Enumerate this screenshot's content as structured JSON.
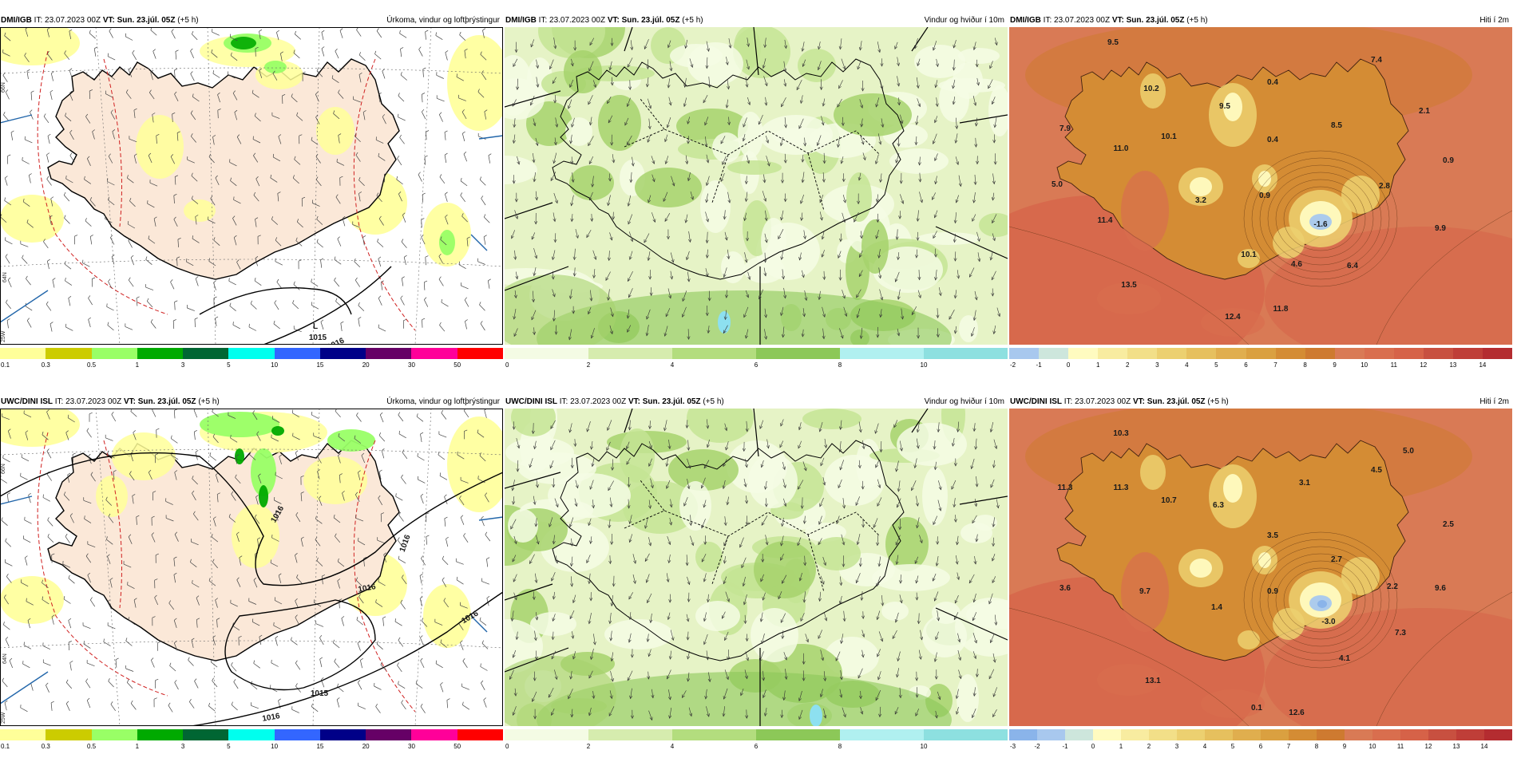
{
  "panels": [
    {
      "id": "p1",
      "model": "DMI/IGB",
      "init": "IT: 23.07.2023 00Z",
      "valid": "VT: Sun. 23.júl. 05Z",
      "lead": "(+5 h)",
      "field": "Úrkoma, vindur og loftþrýstingur",
      "type": "precip",
      "pressure_labels": [
        "L",
        "1015",
        "1016"
      ]
    },
    {
      "id": "p2",
      "model": "DMI/IGB",
      "init": "IT: 23.07.2023 00Z",
      "valid": "VT: Sun. 23.júl. 05Z",
      "lead": "(+5 h)",
      "field": "Vindur og hviður í 10m",
      "type": "wind"
    },
    {
      "id": "p3",
      "model": "DMI/IGB",
      "init": "IT: 23.07.2023 00Z",
      "valid": "VT: Sun. 23.júl. 05Z",
      "lead": "(+5 h)",
      "field": "Hiti í 2m",
      "type": "temp",
      "temp_labels": [
        "9.5",
        "7.4",
        "10.2",
        "0.4",
        "9.5",
        "2.1",
        "7.9",
        "10.1",
        "8.5",
        "0.4",
        "11.0",
        "0.9",
        "5.0",
        "2.8",
        "3.2",
        "0.9",
        "11.4",
        "-1.6",
        "9.9",
        "10.1",
        "4.6",
        "6.4",
        "13.5",
        "11.8",
        "12.4"
      ]
    },
    {
      "id": "p4",
      "model": "UWC/DINI ISL",
      "init": "IT: 23.07.2023 00Z",
      "valid": "VT: Sun. 23.júl. 05Z",
      "lead": "(+5 h)",
      "field": "Úrkoma, vindur og loftþrýstingur",
      "type": "precip",
      "pressure_labels": [
        "1016",
        "1016",
        "1016",
        "1015",
        "1016",
        "1016"
      ]
    },
    {
      "id": "p5",
      "model": "UWC/DINI ISL",
      "init": "IT: 23.07.2023 00Z",
      "valid": "VT: Sun. 23.júl. 05Z",
      "lead": "(+5 h)",
      "field": "Vindur og hviður í 10m",
      "type": "wind"
    },
    {
      "id": "p6",
      "model": "UWC/DINI ISL",
      "init": "IT: 23.07.2023 00Z",
      "valid": "VT: Sun. 23.júl. 05Z",
      "lead": "(+5 h)",
      "field": "Hiti í 2m",
      "type": "temp",
      "temp_labels": [
        "10.3",
        "5.0",
        "4.5",
        "3.1",
        "11.3",
        "11.3",
        "10.7",
        "6.3",
        "2.5",
        "3.5",
        "2.7",
        "3.6",
        "9.7",
        "1.4",
        "0.9",
        "2.2",
        "9.6",
        "-3.0",
        "7.3",
        "4.1",
        "13.1",
        "0.1",
        "12.6"
      ]
    }
  ],
  "scales": {
    "precip": {
      "ticks": [
        "0.1",
        "0.3",
        "0.5",
        "1",
        "3",
        "5",
        "10",
        "15",
        "20",
        "30",
        "50"
      ],
      "colors": [
        "#ffff99",
        "#cccc00",
        "#99ff66",
        "#00aa00",
        "#006633",
        "#00ffee",
        "#3366ff",
        "#000088",
        "#660066",
        "#ff0099",
        "#ff0000"
      ]
    },
    "wind": {
      "ticks": [
        "0",
        "2",
        "4",
        "6",
        "8",
        "10"
      ],
      "colors": [
        "#f4fbe4",
        "#d6ecae",
        "#b3dd7e",
        "#8cc858",
        "#b0f0f0",
        "#8de0e0"
      ]
    },
    "temp_top": {
      "ticks": [
        "-2",
        "-1",
        "0",
        "1",
        "2",
        "3",
        "4",
        "5",
        "6",
        "7",
        "8",
        "9",
        "10",
        "11",
        "12",
        "13",
        "14"
      ],
      "colors": [
        "#a8c8ee",
        "#cde6dc",
        "#fffbc0",
        "#f8eca0",
        "#f2df88",
        "#ecd070",
        "#e6c05e",
        "#e0ae4e",
        "#daa040",
        "#d48c34",
        "#ce7a30",
        "#d97a55",
        "#d96e4e",
        "#d66248",
        "#c85040",
        "#bf3e38",
        "#b42c30"
      ]
    },
    "temp_bottom": {
      "ticks": [
        "-3",
        "-2",
        "-1",
        "0",
        "1",
        "2",
        "3",
        "4",
        "5",
        "6",
        "7",
        "8",
        "9",
        "10",
        "11",
        "12",
        "13",
        "14"
      ],
      "colors": [
        "#8ab4ea",
        "#a8c8ee",
        "#cde6dc",
        "#fffbc0",
        "#f8eca0",
        "#f2df88",
        "#ecd070",
        "#e6c05e",
        "#e0ae4e",
        "#daa040",
        "#d48c34",
        "#ce7a30",
        "#d97a55",
        "#d96e4e",
        "#d66248",
        "#c85040",
        "#bf3e38",
        "#b42c30"
      ]
    }
  },
  "grid_labels": {
    "lat_top": "66N",
    "lat_mid": "64N",
    "lon": "25W"
  },
  "theme": {
    "land": "#fbe8d8",
    "sea": "#ffffff",
    "wind_bg": "#e6f3c6",
    "temp_bg": "#d97a55",
    "temp_land": "#d48c34"
  }
}
